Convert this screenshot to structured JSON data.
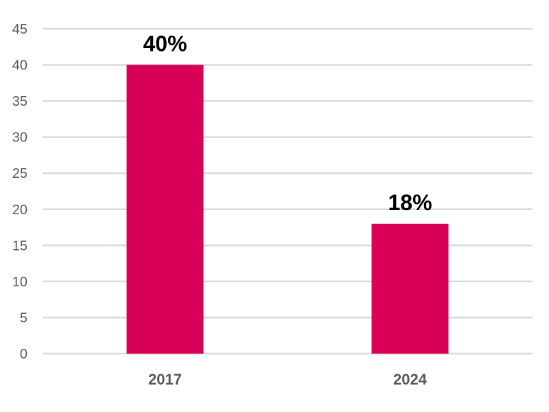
{
  "chart_data": {
    "type": "bar",
    "categories": [
      "2017",
      "2024"
    ],
    "values": [
      40,
      18
    ],
    "data_labels": [
      "40%",
      "18%"
    ],
    "ylim": [
      0,
      45
    ],
    "yticks": [
      0,
      5,
      10,
      15,
      20,
      25,
      30,
      35,
      40,
      45
    ],
    "title": "",
    "xlabel": "",
    "ylabel": "",
    "grid": true,
    "legend": "none",
    "bar_color": "#D90057",
    "grid_color": "#D9D9D9",
    "tick_label_color": "#595959"
  }
}
